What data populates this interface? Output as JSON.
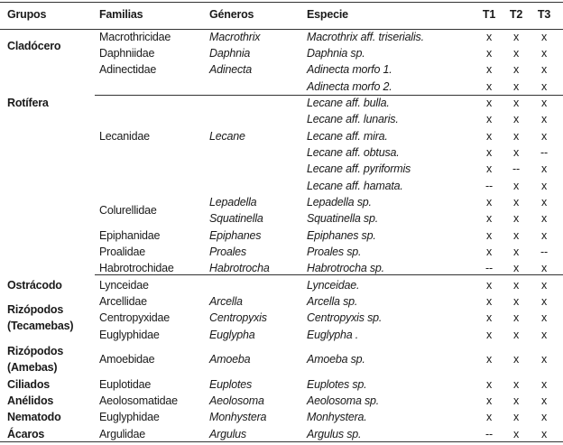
{
  "headers": {
    "grupos": "Grupos",
    "familias": "Familias",
    "generos": "Géneros",
    "especie": "Especie",
    "t1": "T1",
    "t2": "T2",
    "t3": "T3"
  },
  "grupos": [
    "Cladócero",
    "Rotífera",
    "Ostrácodo",
    "Rizópodos",
    "(Tecamebas)",
    "Rizópodos",
    "(Amebas)",
    "Ciliados",
    "Anélidos",
    "Nematodo",
    "Ácaros"
  ],
  "familias": [
    "Macrothricidae",
    "Daphniidae",
    "Adinectidae",
    "Lecanidae",
    "Colurellidae",
    "Epiphanidae",
    "Proalidae",
    "Habrotrochidae",
    "Lynceidae",
    "Arcellidae",
    "Centropyxidae",
    "Euglyphidae",
    "Amoebidae",
    "Euplotidae",
    "Aeolosomatidae",
    "Euglyphidae",
    "Argulidae"
  ],
  "generos": [
    "Macrothrix",
    "Daphnia",
    "Adinecta",
    "Lecane",
    "Lepadella",
    "Squatinella",
    "Epiphanes",
    "Proales",
    "Habrotrocha",
    "Arcella",
    "Centropyxis",
    "Euglypha",
    "Amoeba",
    "Euplotes",
    "Aeolosoma",
    "Monhystera",
    "Argulus"
  ],
  "rows": [
    {
      "especie": "Macrothrix aff. triserialis.",
      "t1": "x",
      "t2": "x",
      "t3": "x"
    },
    {
      "especie": "Daphnia sp.",
      "t1": "x",
      "t2": "x",
      "t3": "x"
    },
    {
      "especie": "Adinecta morfo 1.",
      "t1": "x",
      "t2": "x",
      "t3": "x"
    },
    {
      "especie": "Adinecta morfo 2.",
      "t1": "x",
      "t2": "x",
      "t3": "x"
    },
    {
      "especie": "Lecane aff. bulla.",
      "t1": "x",
      "t2": "x",
      "t3": "x"
    },
    {
      "especie": "Lecane aff. lunaris.",
      "t1": "x",
      "t2": "x",
      "t3": "x"
    },
    {
      "especie": "Lecane aff. mira.",
      "t1": "x",
      "t2": "x",
      "t3": "x"
    },
    {
      "especie": "Lecane aff. obtusa.",
      "t1": "x",
      "t2": "x",
      "t3": "--"
    },
    {
      "especie": "Lecane aff. pyriformis",
      "t1": "x",
      "t2": "--",
      "t3": "x"
    },
    {
      "especie": "Lecane aff. hamata.",
      "t1": "--",
      "t2": "x",
      "t3": "x"
    },
    {
      "especie": "Lepadella sp.",
      "t1": "x",
      "t2": "x",
      "t3": "x"
    },
    {
      "especie": "Squatinella sp.",
      "t1": "x",
      "t2": "x",
      "t3": "x"
    },
    {
      "especie": "Epiphanes sp.",
      "t1": "x",
      "t2": "x",
      "t3": "x"
    },
    {
      "especie": "Proales sp.",
      "t1": "x",
      "t2": "x",
      "t3": "--"
    },
    {
      "especie": "Habrotrocha sp.",
      "t1": "--",
      "t2": "x",
      "t3": "x"
    },
    {
      "especie": "Lynceidae.",
      "t1": "x",
      "t2": "x",
      "t3": "x"
    },
    {
      "especie": "Arcella sp.",
      "t1": "x",
      "t2": "x",
      "t3": "x"
    },
    {
      "especie": "Centropyxis sp.",
      "t1": "x",
      "t2": "x",
      "t3": "x"
    },
    {
      "especie": "Euglypha .",
      "t1": "x",
      "t2": "x",
      "t3": "x"
    },
    {
      "especie": "Amoeba sp.",
      "t1": "x",
      "t2": "x",
      "t3": "x"
    },
    {
      "especie": "Euplotes sp.",
      "t1": "x",
      "t2": "x",
      "t3": "x"
    },
    {
      "especie": "Aeolosoma sp.",
      "t1": "x",
      "t2": "x",
      "t3": "x"
    },
    {
      "especie": "Monhystera.",
      "t1": "x",
      "t2": "x",
      "t3": "x"
    },
    {
      "especie": "Argulus sp.",
      "t1": "--",
      "t2": "x",
      "t3": "x"
    }
  ]
}
